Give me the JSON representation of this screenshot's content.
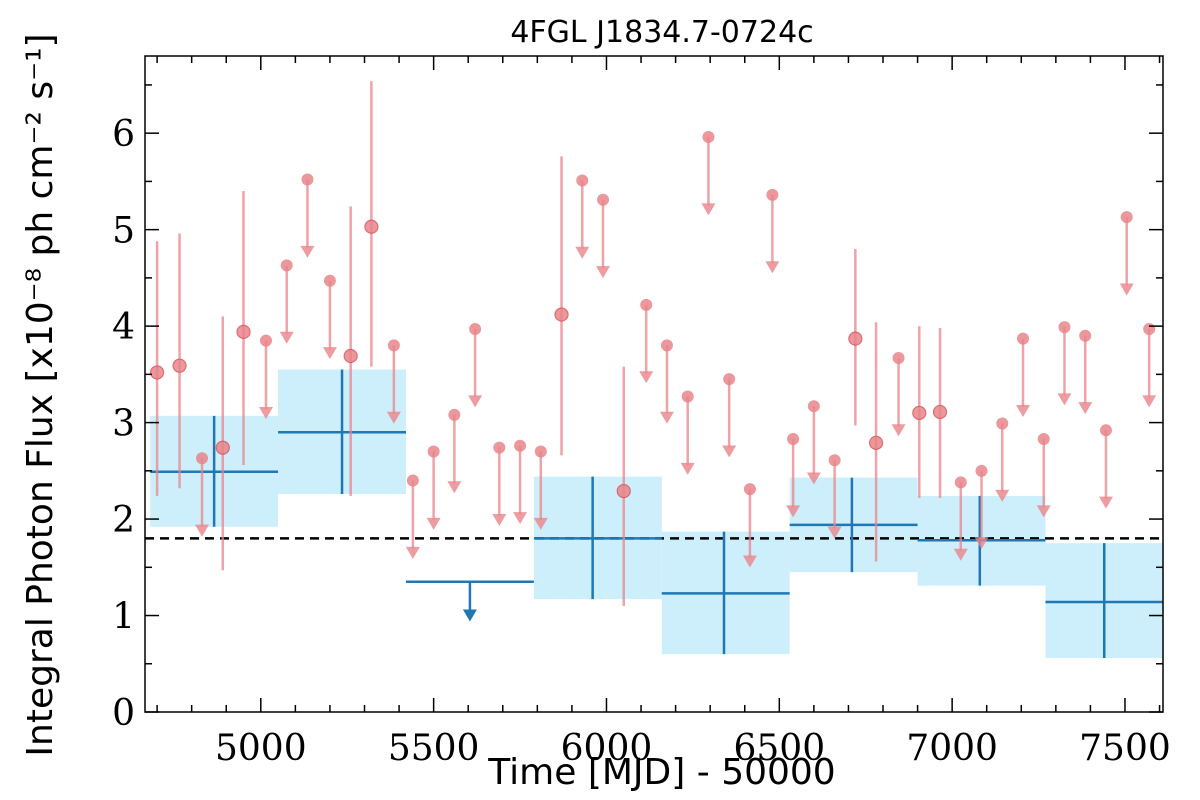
{
  "chart_data": {
    "type": "scatter",
    "title": "4FGL J1834.7-0724c",
    "xlabel": "Time [MJD] - 50000",
    "ylabel": "Integral Photon Flux [x10⁻⁸ ph cm⁻² s⁻¹]",
    "xlim": [
      4665,
      7610
    ],
    "ylim": [
      0,
      6.8
    ],
    "x_ticks": [
      5000,
      5500,
      6000,
      6500,
      7000,
      7500
    ],
    "y_ticks": [
      0,
      1,
      2,
      3,
      4,
      5,
      6
    ],
    "reference_flux": 1.8,
    "colors": {
      "short_bins": "#e8858a",
      "long_bins": "#1f77b4",
      "long_bin_band": "#cdeefb",
      "reference_line": "#000000"
    },
    "short_bins": {
      "detections": [
        {
          "x": 4700,
          "y": 3.52,
          "ylo": 2.24,
          "yhi": 4.88
        },
        {
          "x": 4765,
          "y": 3.59,
          "ylo": 2.32,
          "yhi": 4.96
        },
        {
          "x": 4890,
          "y": 2.74,
          "ylo": 1.47,
          "yhi": 4.1
        },
        {
          "x": 4950,
          "y": 3.94,
          "ylo": 2.56,
          "yhi": 5.4
        },
        {
          "x": 5260,
          "y": 3.69,
          "ylo": 2.24,
          "yhi": 5.24
        },
        {
          "x": 5320,
          "y": 5.03,
          "ylo": 3.58,
          "yhi": 6.54
        },
        {
          "x": 5870,
          "y": 4.12,
          "ylo": 2.66,
          "yhi": 5.76
        },
        {
          "x": 6050,
          "y": 2.29,
          "ylo": 1.1,
          "yhi": 3.58
        },
        {
          "x": 6720,
          "y": 3.87,
          "ylo": 2.97,
          "yhi": 4.8
        },
        {
          "x": 6780,
          "y": 2.79,
          "ylo": 1.56,
          "yhi": 4.04
        },
        {
          "x": 6905,
          "y": 3.1,
          "ylo": 2.22,
          "yhi": 4.0
        },
        {
          "x": 6965,
          "y": 3.11,
          "ylo": 2.22,
          "yhi": 3.98
        }
      ],
      "upper_limits": [
        {
          "x": 4830,
          "y": 2.63
        },
        {
          "x": 5015,
          "y": 3.85
        },
        {
          "x": 5075,
          "y": 4.63
        },
        {
          "x": 5135,
          "y": 5.52
        },
        {
          "x": 5200,
          "y": 4.47
        },
        {
          "x": 5385,
          "y": 3.8
        },
        {
          "x": 5440,
          "y": 2.4
        },
        {
          "x": 5500,
          "y": 2.7
        },
        {
          "x": 5560,
          "y": 3.08
        },
        {
          "x": 5620,
          "y": 3.97
        },
        {
          "x": 5690,
          "y": 2.74
        },
        {
          "x": 5750,
          "y": 2.76
        },
        {
          "x": 5810,
          "y": 2.7
        },
        {
          "x": 5930,
          "y": 5.51
        },
        {
          "x": 5990,
          "y": 5.31
        },
        {
          "x": 6115,
          "y": 4.22
        },
        {
          "x": 6175,
          "y": 3.8
        },
        {
          "x": 6235,
          "y": 3.27
        },
        {
          "x": 6295,
          "y": 5.96
        },
        {
          "x": 6355,
          "y": 3.45
        },
        {
          "x": 6415,
          "y": 2.31
        },
        {
          "x": 6480,
          "y": 5.36
        },
        {
          "x": 6540,
          "y": 2.83
        },
        {
          "x": 6600,
          "y": 3.17
        },
        {
          "x": 6660,
          "y": 2.61
        },
        {
          "x": 6845,
          "y": 3.67
        },
        {
          "x": 7025,
          "y": 2.38
        },
        {
          "x": 7085,
          "y": 2.5
        },
        {
          "x": 7145,
          "y": 2.99
        },
        {
          "x": 7205,
          "y": 3.87
        },
        {
          "x": 7265,
          "y": 2.83
        },
        {
          "x": 7325,
          "y": 3.99
        },
        {
          "x": 7385,
          "y": 3.9
        },
        {
          "x": 7445,
          "y": 2.92
        },
        {
          "x": 7505,
          "y": 5.13
        },
        {
          "x": 7570,
          "y": 3.97
        }
      ]
    },
    "long_bins": {
      "detections": [
        {
          "x0": 4680,
          "x1": 5050,
          "x": 4865,
          "y": 2.49,
          "ylo": 1.92,
          "yhi": 3.07
        },
        {
          "x0": 5050,
          "x1": 5420,
          "x": 5235,
          "y": 2.9,
          "ylo": 2.26,
          "yhi": 3.55
        },
        {
          "x0": 5790,
          "x1": 6160,
          "x": 5960,
          "y": 1.8,
          "ylo": 1.17,
          "yhi": 2.44
        },
        {
          "x0": 6160,
          "x1": 6530,
          "x": 6340,
          "y": 1.23,
          "ylo": 0.6,
          "yhi": 1.87
        },
        {
          "x0": 6530,
          "x1": 6900,
          "x": 6710,
          "y": 1.94,
          "ylo": 1.45,
          "yhi": 2.43
        },
        {
          "x0": 6900,
          "x1": 7270,
          "x": 7080,
          "y": 1.78,
          "ylo": 1.31,
          "yhi": 2.24
        },
        {
          "x0": 7270,
          "x1": 7640,
          "x": 7440,
          "y": 1.14,
          "ylo": 0.56,
          "yhi": 1.75
        }
      ],
      "upper_limits": [
        {
          "x0": 5420,
          "x1": 5790,
          "x": 5605,
          "y": 1.35
        }
      ]
    }
  }
}
